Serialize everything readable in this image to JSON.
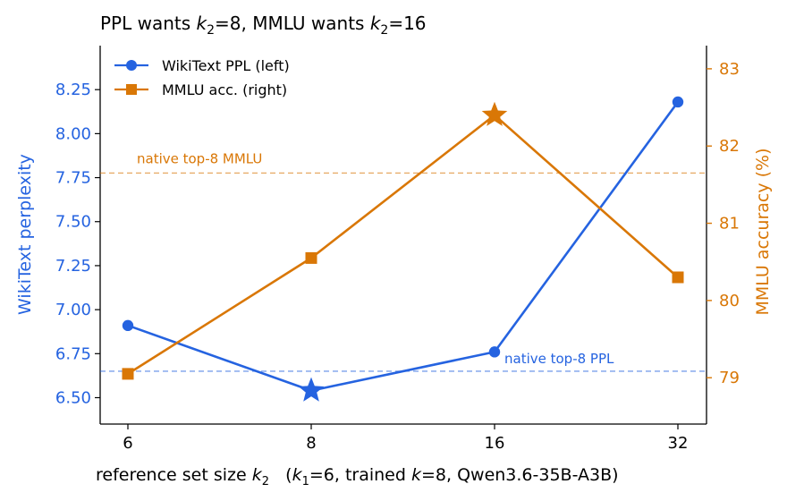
{
  "chart_data": {
    "type": "line",
    "title_parts": {
      "prefix": "PPL wants ",
      "k": "k",
      "sub": "2",
      "mid": "=8, MMLU wants ",
      "k2": "k",
      "sub2": "2",
      "suffix": "=16"
    },
    "xlabel_parts": {
      "prefix": "reference set size ",
      "k": "k",
      "sub": "2",
      "gap": "   (",
      "k1": "k",
      "sub1": "1",
      "mid": "=6, trained ",
      "k3": "k",
      "suffix": "=8, Qwen3.6-35B-A3B)"
    },
    "categories": [
      "6",
      "8",
      "16",
      "32"
    ],
    "series": [
      {
        "name": "WikiText PPL (left)",
        "axis": "left",
        "color": "#2563e0",
        "marker": "circle",
        "values": [
          6.91,
          6.54,
          6.76,
          8.18
        ],
        "best_index": 1
      },
      {
        "name": "MMLU acc. (right)",
        "axis": "right",
        "color": "#d97706",
        "marker": "square",
        "values": [
          79.05,
          80.55,
          82.4,
          80.3
        ],
        "best_index": 2
      }
    ],
    "left_axis": {
      "label": "WikiText perplexity",
      "range": [
        6.35,
        8.5
      ],
      "ticks": [
        6.5,
        6.75,
        7.0,
        7.25,
        7.5,
        7.75,
        8.0,
        8.25
      ],
      "tick_labels": [
        "6.50",
        "6.75",
        "7.00",
        "7.25",
        "7.50",
        "7.75",
        "8.00",
        "8.25"
      ],
      "color": "#2563e0"
    },
    "right_axis": {
      "label": "MMLU accuracy (%)",
      "range": [
        78.4,
        83.3
      ],
      "ticks": [
        79,
        80,
        81,
        82,
        83
      ],
      "tick_labels": [
        "79",
        "80",
        "81",
        "82",
        "83"
      ],
      "color": "#d97706"
    },
    "reference_lines": [
      {
        "axis": "left",
        "value": 6.65,
        "label": "native top-8 PPL",
        "color": "#2563e0"
      },
      {
        "axis": "right",
        "value": 81.65,
        "label": "native top-8 MMLU",
        "color": "#d97706"
      }
    ],
    "legend_position": "top-left",
    "grid": false
  }
}
